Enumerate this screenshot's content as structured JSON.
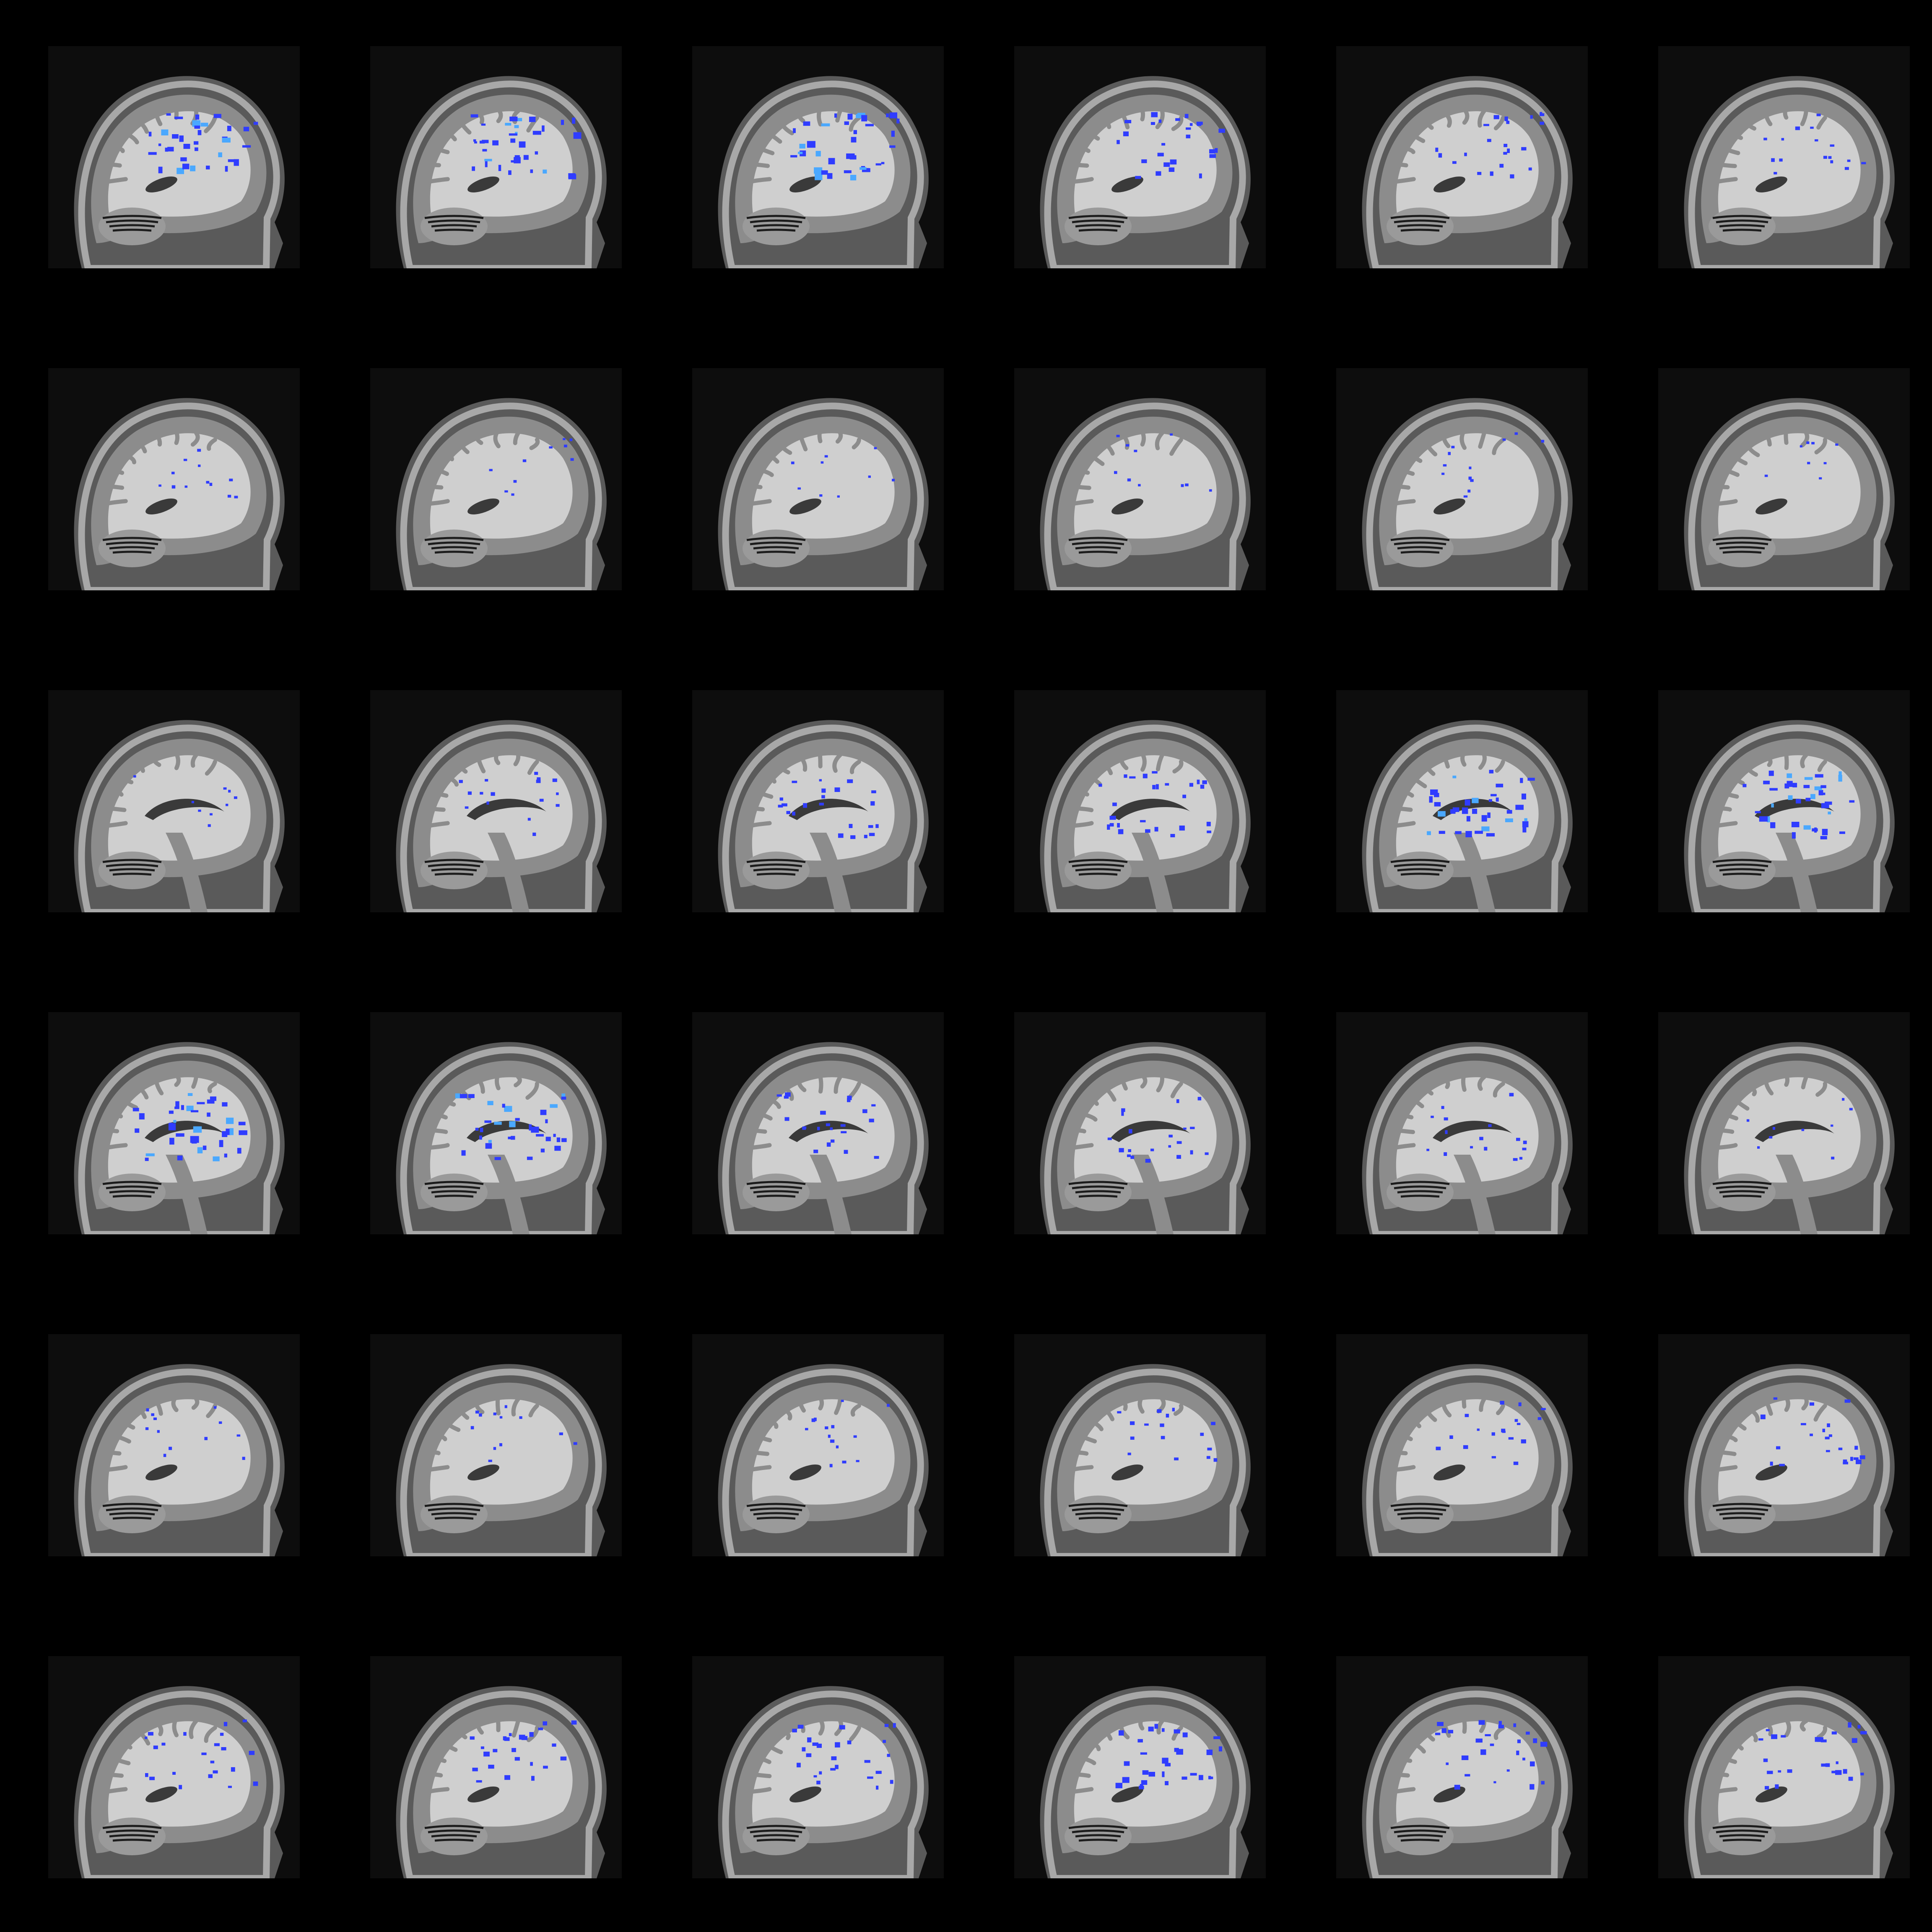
{
  "montage": {
    "rows": 6,
    "cols": 6,
    "background_color": "#000000",
    "frame_color": "#0d0d0d",
    "anatomy_colors": {
      "scalp": "#5a5a5a",
      "skull": "#a8a8a8",
      "gray_matter": "#8c8c8c",
      "white_matter": "#cfcfcf",
      "ventricle": "#3a3a3a",
      "cerebellum": "#9a9a9a",
      "dark": "#1c1c1c"
    },
    "overlay_color": "#2f3cff",
    "overlay_highlight_color": "#4aa8ff",
    "slices": [
      {
        "row": 0,
        "col": 0,
        "view": "sagittal-lateral",
        "activation": 0.8
      },
      {
        "row": 0,
        "col": 1,
        "view": "sagittal-lateral",
        "activation": 0.8
      },
      {
        "row": 0,
        "col": 2,
        "view": "sagittal-lateral",
        "activation": 0.85
      },
      {
        "row": 0,
        "col": 3,
        "view": "sagittal-lateral",
        "activation": 0.55
      },
      {
        "row": 0,
        "col": 4,
        "view": "sagittal-lateral",
        "activation": 0.45
      },
      {
        "row": 0,
        "col": 5,
        "view": "sagittal-lateral",
        "activation": 0.3
      },
      {
        "row": 1,
        "col": 0,
        "view": "sagittal-mid",
        "activation": 0.2
      },
      {
        "row": 1,
        "col": 1,
        "view": "sagittal-mid",
        "activation": 0.15
      },
      {
        "row": 1,
        "col": 2,
        "view": "sagittal-mid",
        "activation": 0.12
      },
      {
        "row": 1,
        "col": 3,
        "view": "sagittal-mid",
        "activation": 0.15
      },
      {
        "row": 1,
        "col": 4,
        "view": "sagittal-mid",
        "activation": 0.2
      },
      {
        "row": 1,
        "col": 5,
        "view": "sagittal-mid",
        "activation": 0.1
      },
      {
        "row": 2,
        "col": 0,
        "view": "sagittal-medial",
        "activation": 0.12
      },
      {
        "row": 2,
        "col": 1,
        "view": "sagittal-medial",
        "activation": 0.3
      },
      {
        "row": 2,
        "col": 2,
        "view": "sagittal-medial",
        "activation": 0.45
      },
      {
        "row": 2,
        "col": 3,
        "view": "sagittal-medial",
        "activation": 0.55
      },
      {
        "row": 2,
        "col": 4,
        "view": "sagittal-medial",
        "activation": 0.8
      },
      {
        "row": 2,
        "col": 5,
        "view": "sagittal-medial",
        "activation": 0.85
      },
      {
        "row": 3,
        "col": 0,
        "view": "sagittal-medial",
        "activation": 0.85
      },
      {
        "row": 3,
        "col": 1,
        "view": "sagittal-medial",
        "activation": 0.75
      },
      {
        "row": 3,
        "col": 2,
        "view": "sagittal-medial",
        "activation": 0.45
      },
      {
        "row": 3,
        "col": 3,
        "view": "sagittal-medial",
        "activation": 0.4
      },
      {
        "row": 3,
        "col": 4,
        "view": "sagittal-medial",
        "activation": 0.3
      },
      {
        "row": 3,
        "col": 5,
        "view": "sagittal-medial",
        "activation": 0.12
      },
      {
        "row": 4,
        "col": 0,
        "view": "sagittal-mid",
        "activation": 0.2
      },
      {
        "row": 4,
        "col": 1,
        "view": "sagittal-mid",
        "activation": 0.2
      },
      {
        "row": 4,
        "col": 2,
        "view": "sagittal-mid",
        "activation": 0.25
      },
      {
        "row": 4,
        "col": 3,
        "view": "sagittal-mid",
        "activation": 0.3
      },
      {
        "row": 4,
        "col": 4,
        "view": "sagittal-lateral",
        "activation": 0.35
      },
      {
        "row": 4,
        "col": 5,
        "view": "sagittal-lateral",
        "activation": 0.45
      },
      {
        "row": 5,
        "col": 0,
        "view": "sagittal-lateral",
        "activation": 0.45
      },
      {
        "row": 5,
        "col": 1,
        "view": "sagittal-lateral",
        "activation": 0.5
      },
      {
        "row": 5,
        "col": 2,
        "view": "sagittal-lateral",
        "activation": 0.55
      },
      {
        "row": 5,
        "col": 3,
        "view": "sagittal-lateral",
        "activation": 0.65
      },
      {
        "row": 5,
        "col": 4,
        "view": "sagittal-lateral",
        "activation": 0.6
      },
      {
        "row": 5,
        "col": 5,
        "view": "sagittal-lateral",
        "activation": 0.55
      }
    ]
  }
}
